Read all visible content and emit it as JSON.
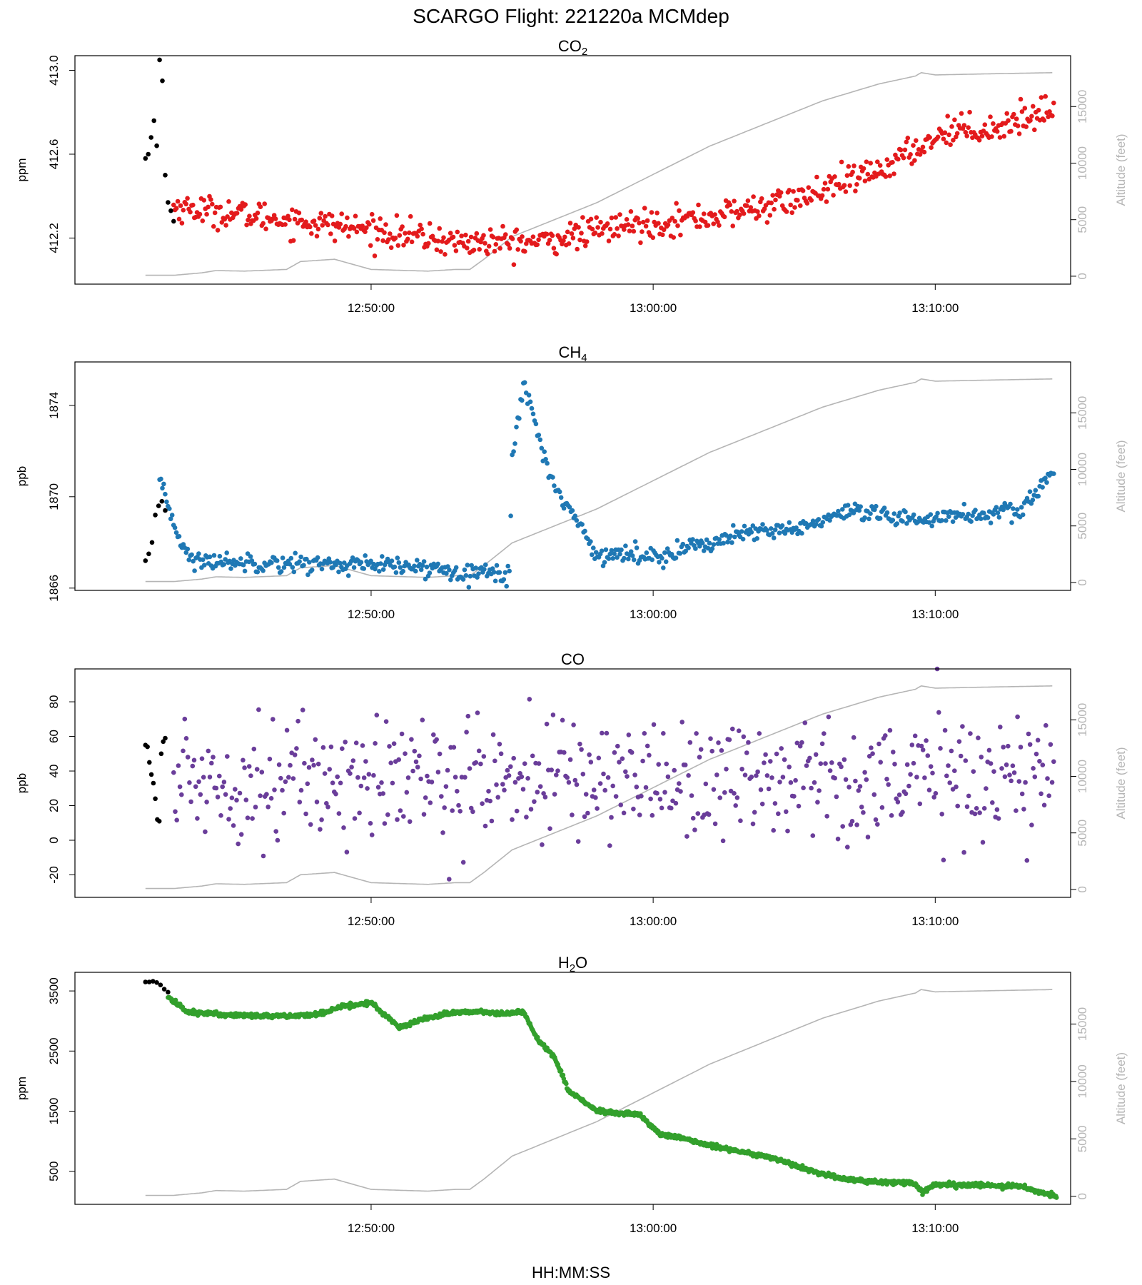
{
  "figure": {
    "title": "SCARGO Flight: 221220a  MCMdep",
    "xlabel": "HH:MM:SS",
    "right_axis_label": "Altitude (feet)",
    "colors": {
      "initial": "#000000",
      "altitude": "#b5b5b5"
    }
  },
  "chart_data": [
    {
      "type": "scatter",
      "panel": "co2",
      "title_main": "CO",
      "title_sub": "2",
      "ylabel": "ppm",
      "color": "#e31a1c",
      "x_ticks": [
        "12:50:00",
        "13:00:00",
        "13:10:00"
      ],
      "x_range_min": [
        -10.5,
        24.8
      ],
      "y_range": [
        411.98,
        413.07
      ],
      "y_ticks": [
        412.2,
        412.6,
        413.0
      ],
      "y_tick_labels": [
        "412.2",
        "412.6",
        "413.0"
      ],
      "initial_points": {
        "x_min": [
          -8.0,
          -7.0
        ],
        "values": [
          412.58,
          412.6,
          412.68,
          412.76,
          412.64,
          413.05,
          412.95,
          412.5,
          412.37,
          412.33,
          412.28
        ]
      },
      "series_x_min": [
        -7.0,
        0,
        3,
        6,
        9,
        12,
        15,
        18,
        20.5,
        22,
        24.2
      ],
      "series_values": [
        412.35,
        412.24,
        412.18,
        412.18,
        412.26,
        412.3,
        412.38,
        412.52,
        412.72,
        412.72,
        412.82
      ],
      "series_noise": 0.035,
      "series_count": 640
    },
    {
      "type": "scatter",
      "panel": "ch4",
      "title_main": "CH",
      "title_sub": "4",
      "ylabel": "ppb",
      "color": "#1f78b4",
      "x_ticks": [
        "12:50:00",
        "13:00:00",
        "13:10:00"
      ],
      "x_range_min": [
        -10.5,
        24.8
      ],
      "y_range": [
        1865.9,
        1875.9
      ],
      "y_ticks": [
        1866,
        1870,
        1874
      ],
      "y_tick_labels": [
        "1866",
        "1870",
        "1874"
      ],
      "initial_points": {
        "x_min": [
          -8.0,
          -7.3
        ],
        "values": [
          1867.2,
          1867.5,
          1868.0,
          1869.2,
          1869.6,
          1869.8,
          1869.4
        ]
      },
      "series_x_min": [
        -7.5,
        -6.8,
        -6.3,
        -6.0,
        -3,
        0,
        3,
        4.9,
        5.0,
        5.4,
        5.7,
        6.3,
        7,
        8,
        10,
        13,
        15,
        17,
        19,
        21,
        23,
        24.2
      ],
      "series_values": [
        1870.6,
        1868.2,
        1867.1,
        1867.2,
        1867.1,
        1867.0,
        1866.8,
        1866.6,
        1871.5,
        1875.0,
        1873.8,
        1871.0,
        1869.5,
        1867.5,
        1867.4,
        1868.3,
        1868.6,
        1869.3,
        1869.0,
        1869.2,
        1869.3,
        1871.2
      ],
      "series_noise": 0.2,
      "series_count": 640
    },
    {
      "type": "scatter",
      "panel": "co",
      "title_main": "CO",
      "title_sub": "",
      "ylabel": "ppb",
      "color": "#6a3d9a",
      "x_ticks": [
        "12:50:00",
        "13:00:00",
        "13:10:00"
      ],
      "x_range_min": [
        -10.5,
        24.8
      ],
      "y_range": [
        -33,
        99
      ],
      "y_ticks": [
        -20,
        0,
        20,
        40,
        60,
        80
      ],
      "y_tick_labels": [
        "-20",
        "0",
        "20",
        "40",
        "60",
        "80"
      ],
      "initial_points": {
        "x_min": [
          -8.0,
          -7.3
        ],
        "values": [
          55,
          54,
          45,
          38,
          33,
          24,
          12,
          11,
          50,
          57,
          59
        ]
      },
      "series_x_min": [
        -7.0,
        24.2
      ],
      "series_values": [
        35,
        37
      ],
      "series_noise": 18,
      "series_count": 560
    },
    {
      "type": "scatter",
      "panel": "h2o",
      "title_main": "H",
      "title_sub": "2",
      "title_tail": "O",
      "ylabel": "ppm",
      "color": "#33a02c",
      "x_ticks": [
        "12:50:00",
        "13:00:00",
        "13:10:00"
      ],
      "x_range_min": [
        -10.5,
        24.8
      ],
      "y_range": [
        -50,
        3810
      ],
      "y_ticks": [
        500,
        1500,
        2500,
        3500
      ],
      "y_tick_labels": [
        "500",
        "1500",
        "2500",
        "3500"
      ],
      "initial_points": {
        "x_min": [
          -8.0,
          -7.2
        ],
        "values": [
          3650,
          3650,
          3660,
          3640,
          3600,
          3530,
          3480
        ]
      },
      "series_x_min": [
        -7.2,
        -6.5,
        -5,
        -3,
        -2,
        -1,
        0,
        1,
        2,
        3,
        4,
        4.7,
        5.4,
        5.9,
        6.5,
        7,
        8,
        9,
        9.5,
        10.3,
        11,
        12,
        14,
        16,
        17,
        19.3,
        19.5,
        20,
        23,
        24.3
      ],
      "series_values": [
        3400,
        3150,
        3100,
        3080,
        3100,
        3250,
        3300,
        2900,
        3050,
        3150,
        3150,
        3120,
        3150,
        2700,
        2400,
        1850,
        1500,
        1450,
        1450,
        1100,
        1050,
        930,
        750,
        450,
        350,
        300,
        150,
        280,
        250,
        80
      ],
      "series_noise": 18,
      "series_count": 1400
    }
  ],
  "altitude_profile": {
    "y_range_feet": [
      -700,
      19500
    ],
    "y_ticks": [
      0,
      5000,
      10000,
      15000
    ],
    "y_tick_labels": [
      "0",
      "5000",
      "10000",
      "15000"
    ],
    "x_min": [
      -8.0,
      -7.0,
      -6.0,
      -5.5,
      -4.5,
      -3.0,
      -2.5,
      -1.3,
      0,
      2,
      3,
      3.5,
      4.0,
      5,
      6.5,
      8,
      10,
      12,
      14,
      16,
      18,
      19.3,
      19.5,
      20,
      22,
      24.2
    ],
    "feet": [
      80,
      80,
      300,
      500,
      450,
      600,
      1300,
      1500,
      600,
      450,
      600,
      600,
      1500,
      3500,
      5000,
      6500,
      9000,
      11500,
      13500,
      15500,
      17000,
      17700,
      18000,
      17800,
      17900,
      18000
    ]
  }
}
